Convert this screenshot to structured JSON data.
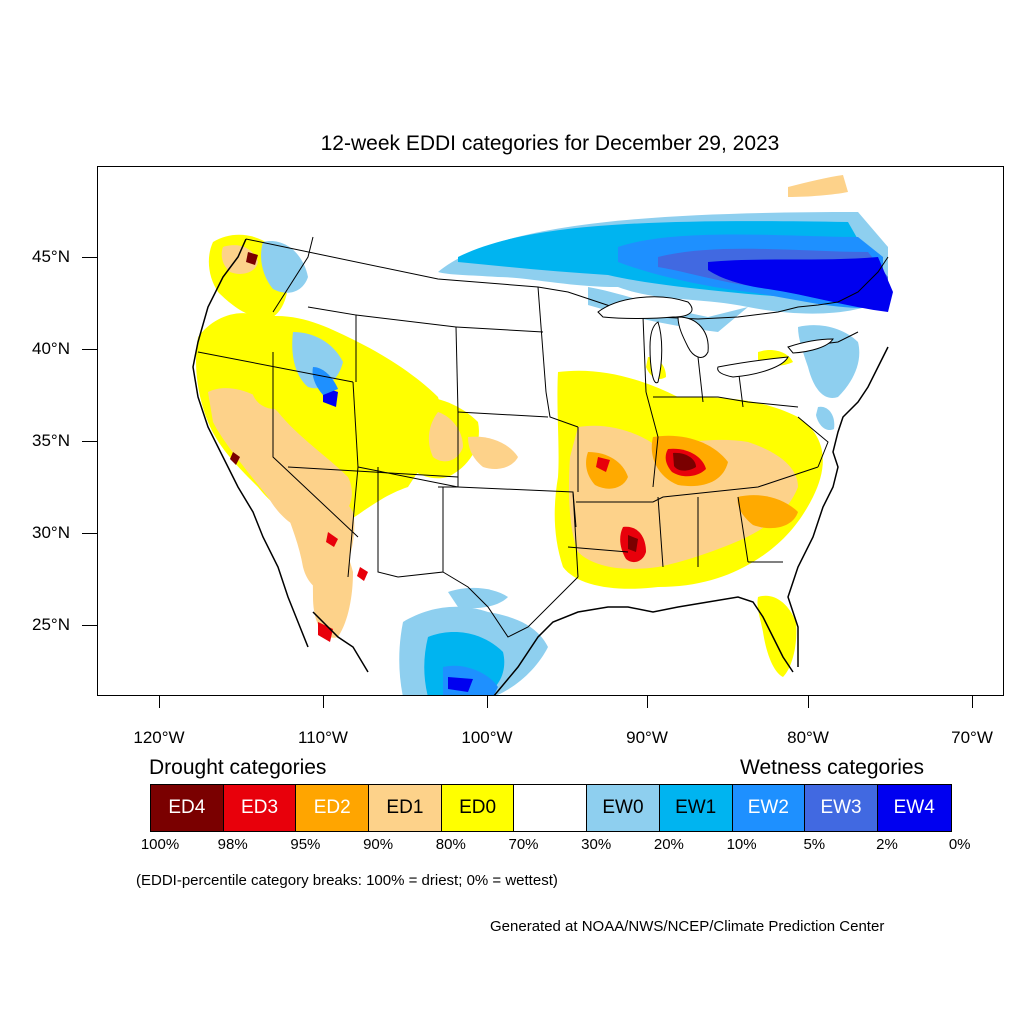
{
  "title": "12-week EDDI categories for December 29, 2023",
  "map": {
    "projection": "equidistant-cylindrical",
    "lon_range": [
      -124.5,
      -68.5
    ],
    "lat_range": [
      20.5,
      49.5
    ],
    "y_axis_labels": [
      "45°N",
      "40°N",
      "35°N",
      "30°N",
      "25°N"
    ],
    "x_axis_labels": [
      "120°W",
      "110°W",
      "100°W",
      "90°W",
      "80°W",
      "70°W"
    ],
    "regions": [
      {
        "name": "ED4",
        "color": "#7a0000",
        "areas": [
          "western Kentucky / Tennessee",
          "central Mississippi",
          "Pacific Northwest coast"
        ]
      },
      {
        "name": "ED3",
        "color": "#e8000b",
        "areas": [
          "Kentucky-Tennessee",
          "Mississippi",
          "Arizona",
          "Baja California"
        ]
      },
      {
        "name": "ED2",
        "color": "#ffaa00",
        "areas": [
          "Ozarks",
          "Tennessee Valley",
          "Southwest"
        ]
      },
      {
        "name": "ED1",
        "color": "#fdcf8f",
        "areas": [
          "Southwest",
          "Colorado",
          "Lower Mississippi Valley",
          "Carolinas"
        ]
      },
      {
        "name": "ED0",
        "color": "#ffff00",
        "areas": [
          "California",
          "Great Basin",
          "Ohio Valley",
          "Florida"
        ]
      },
      {
        "name": "EW0",
        "color": "#8ecfef",
        "areas": [
          "Pacific Northwest",
          "Texas",
          "Northeast"
        ]
      },
      {
        "name": "EW1",
        "color": "#00b4f0",
        "areas": [
          "southern Canada",
          "Texas coast"
        ]
      },
      {
        "name": "EW2",
        "color": "#1e90ff",
        "areas": [
          "Ontario",
          "Quebec"
        ]
      },
      {
        "name": "EW3",
        "color": "#4169e1",
        "areas": [
          "Ontario",
          "Quebec"
        ]
      },
      {
        "name": "EW4",
        "color": "#0000ff",
        "areas": [
          "Quebec",
          "Utah",
          "south Texas"
        ]
      }
    ]
  },
  "legend": {
    "drought_heading": "Drought categories",
    "wetness_heading": "Wetness categories",
    "categories": [
      {
        "label": "ED4",
        "color": "#7a0000",
        "text_color": "#ffffff"
      },
      {
        "label": "ED3",
        "color": "#e8000b",
        "text_color": "#ffffff"
      },
      {
        "label": "ED2",
        "color": "#ffa500",
        "text_color": "#ffffff"
      },
      {
        "label": "ED1",
        "color": "#fdd28a",
        "text_color": "#000000"
      },
      {
        "label": "ED0",
        "color": "#ffff00",
        "text_color": "#000000"
      },
      {
        "label": "",
        "color": "#ffffff",
        "text_color": "#000000"
      },
      {
        "label": "EW0",
        "color": "#8ecfef",
        "text_color": "#000000"
      },
      {
        "label": "EW1",
        "color": "#00b4f0",
        "text_color": "#000000"
      },
      {
        "label": "EW2",
        "color": "#1e90ff",
        "text_color": "#ffffff"
      },
      {
        "label": "EW3",
        "color": "#4169e1",
        "text_color": "#ffffff"
      },
      {
        "label": "EW4",
        "color": "#0000f0",
        "text_color": "#ffffff"
      }
    ],
    "breaks": [
      "100%",
      "98%",
      "95%",
      "90%",
      "80%",
      "70%",
      "30%",
      "20%",
      "10%",
      "5%",
      "2%",
      "0%"
    ]
  },
  "note": "(EDDI-percentile category breaks: 100% = driest; 0% = wettest)",
  "credit": "Generated at NOAA/NWS/NCEP/Climate Prediction Center"
}
